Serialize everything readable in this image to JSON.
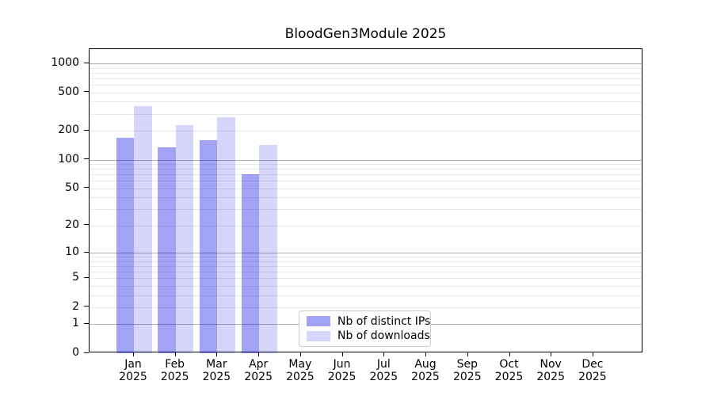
{
  "chart_data": {
    "type": "bar",
    "title": "BloodGen3Module 2025",
    "categories": [
      "Jan",
      "Feb",
      "Mar",
      "Apr",
      "May",
      "Jun",
      "Jul",
      "Aug",
      "Sep",
      "Oct",
      "Nov",
      "Dec"
    ],
    "year": "2025",
    "series": [
      {
        "key": "distinct-ips",
        "name": "Nb of distinct IPs",
        "color": "#0000e6",
        "alpha": 0.36,
        "solid_equivalent": "#a6a6f8",
        "values": [
          168,
          134,
          159,
          70,
          0,
          0,
          0,
          0,
          0,
          0,
          0,
          0
        ]
      },
      {
        "key": "downloads",
        "name": "Nb of downloads",
        "color": "#0000e6",
        "alpha": 0.16,
        "solid_equivalent": "#dcdcfb",
        "values": [
          360,
          228,
          275,
          141,
          0,
          0,
          0,
          0,
          0,
          0,
          0,
          0
        ]
      }
    ],
    "yscale": "log1p",
    "yticks": [
      0,
      1,
      2,
      5,
      10,
      20,
      50,
      100,
      200,
      500,
      1000
    ],
    "ylim": [
      0,
      1404
    ],
    "xlabel": "",
    "ylabel": "",
    "grid": {
      "on": true,
      "major": [
        1,
        10,
        100,
        1000
      ],
      "major_color": "#b0b0b0",
      "minor_color": "#e8e8e8"
    },
    "legend": {
      "position": "lower center",
      "border_color": "#cccccc"
    }
  },
  "colors": {
    "background": "#ffffff",
    "axes": "#000000",
    "text": "#000000"
  }
}
